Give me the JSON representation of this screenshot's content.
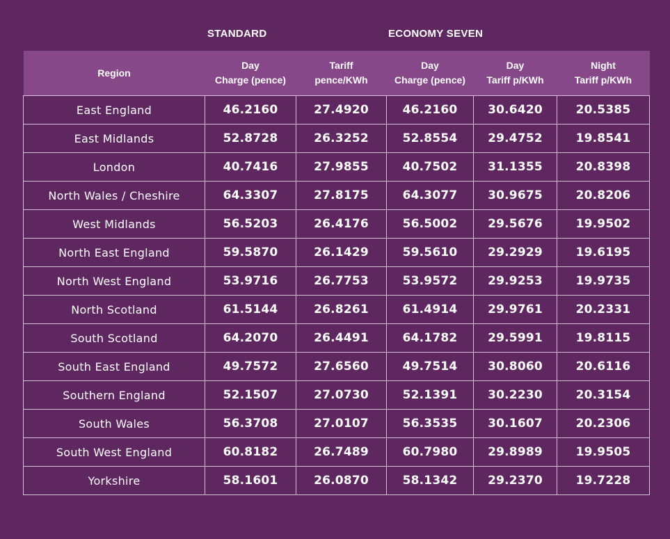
{
  "groups": {
    "standard": "STANDARD",
    "economy_seven": "ECONOMY SEVEN"
  },
  "headers": [
    {
      "line1": "Region",
      "line2": ""
    },
    {
      "line1": "Day",
      "line2": "Charge (pence)"
    },
    {
      "line1": "Tariff",
      "line2": "pence/KWh"
    },
    {
      "line1": "Day",
      "line2": "Charge (pence)"
    },
    {
      "line1": "Day",
      "line2": "Tariff p/KWh"
    },
    {
      "line1": "Night",
      "line2": "Tariff p/KWh"
    }
  ],
  "rows": [
    [
      "East England",
      "46.2160",
      "27.4920",
      "46.2160",
      "30.6420",
      "20.5385"
    ],
    [
      "East Midlands",
      "52.8728",
      "26.3252",
      "52.8554",
      "29.4752",
      "19.8541"
    ],
    [
      "London",
      "40.7416",
      "27.9855",
      "40.7502",
      "31.1355",
      "20.8398"
    ],
    [
      "North Wales / Cheshire",
      "64.3307",
      "27.8175",
      "64.3077",
      "30.9675",
      "20.8206"
    ],
    [
      "West Midlands",
      "56.5203",
      "26.4176",
      "56.5002",
      "29.5676",
      "19.9502"
    ],
    [
      "North East England",
      "59.5870",
      "26.1429",
      "59.5610",
      "29.2929",
      "19.6195"
    ],
    [
      "North West England",
      "53.9716",
      "26.7753",
      "53.9572",
      "29.9253",
      "19.9735"
    ],
    [
      "North Scotland",
      "61.5144",
      "26.8261",
      "61.4914",
      "29.9761",
      "20.2331"
    ],
    [
      "South Scotland",
      "64.2070",
      "26.4491",
      "64.1782",
      "29.5991",
      "19.8115"
    ],
    [
      "South East England",
      "49.7572",
      "27.6560",
      "49.7514",
      "30.8060",
      "20.6116"
    ],
    [
      "Southern England",
      "52.1507",
      "27.0730",
      "52.1391",
      "30.2230",
      "20.3154"
    ],
    [
      "South Wales",
      "56.3708",
      "27.0107",
      "56.3535",
      "30.1607",
      "20.2306"
    ],
    [
      "South West England",
      "60.8182",
      "26.7489",
      "60.7980",
      "29.8989",
      "19.9505"
    ],
    [
      "Yorkshire",
      "58.1601",
      "26.0870",
      "58.1342",
      "29.2370",
      "19.7228"
    ]
  ],
  "colors": {
    "background": "#5e2760",
    "header_band": "#874889",
    "grid_lines": "#d8c3d8",
    "text": "#ffffff"
  }
}
